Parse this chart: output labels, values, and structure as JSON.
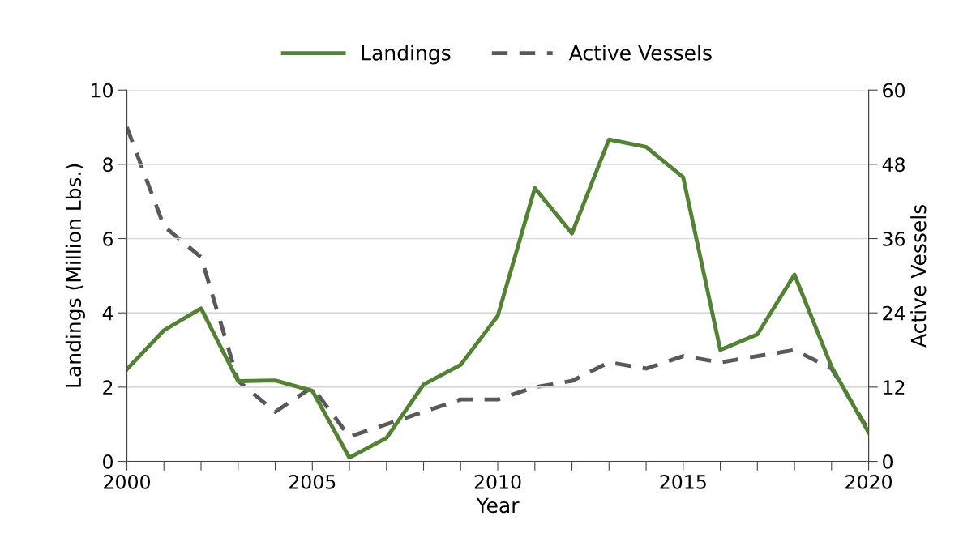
{
  "chart_data": {
    "type": "line",
    "xlabel": "Year",
    "ylabel": "Landings (Million Lbs.)",
    "y2label": "Active Vessels",
    "x": [
      2000,
      2001,
      2002,
      2003,
      2004,
      2005,
      2006,
      2007,
      2008,
      2009,
      2010,
      2011,
      2012,
      2013,
      2014,
      2015,
      2016,
      2017,
      2018,
      2019,
      2020
    ],
    "series": [
      {
        "name": "Landings",
        "color": "#548235",
        "line_style": "solid",
        "values": [
          2.48,
          3.53,
          4.12,
          2.16,
          2.18,
          1.9,
          0.1,
          0.63,
          2.07,
          2.6,
          3.92,
          7.36,
          6.14,
          8.67,
          8.47,
          7.65,
          3.0,
          3.42,
          5.03,
          2.55,
          0.78
        ]
      },
      {
        "name": "Active Vessels",
        "color": "#595959",
        "line_style": "dashed",
        "axis": "y2",
        "values": [
          54,
          38,
          33,
          13,
          8,
          12,
          4,
          6,
          8,
          10,
          10,
          12,
          13,
          16,
          15,
          17,
          16,
          17,
          18,
          15,
          5
        ]
      }
    ],
    "xlim": [
      2000,
      2020
    ],
    "xticks": [
      2000,
      {
        "value": 2001,
        "label": null
      },
      {
        "value": 2002,
        "label": null
      },
      {
        "value": 2003,
        "label": null
      },
      {
        "value": 2004,
        "label": null
      },
      2005,
      {
        "value": 2006,
        "label": null
      },
      {
        "value": 2007,
        "label": null
      },
      {
        "value": 2008,
        "label": null
      },
      {
        "value": 2009,
        "label": null
      },
      2010,
      {
        "value": 2011,
        "label": null
      },
      {
        "value": 2012,
        "label": null
      },
      {
        "value": 2013,
        "label": null
      },
      {
        "value": 2014,
        "label": null
      },
      2015,
      {
        "value": 2016,
        "label": null
      },
      {
        "value": 2017,
        "label": null
      },
      {
        "value": 2018,
        "label": null
      },
      {
        "value": 2019,
        "label": null
      },
      2020
    ],
    "ylim": [
      0,
      10
    ],
    "yticks": [
      0,
      2,
      4,
      6,
      8,
      10
    ],
    "y2lim": [
      0,
      60
    ],
    "y2ticks": [
      0,
      12,
      24,
      36,
      48,
      60
    ],
    "grid": "y",
    "legend": "top",
    "marker": "none"
  }
}
